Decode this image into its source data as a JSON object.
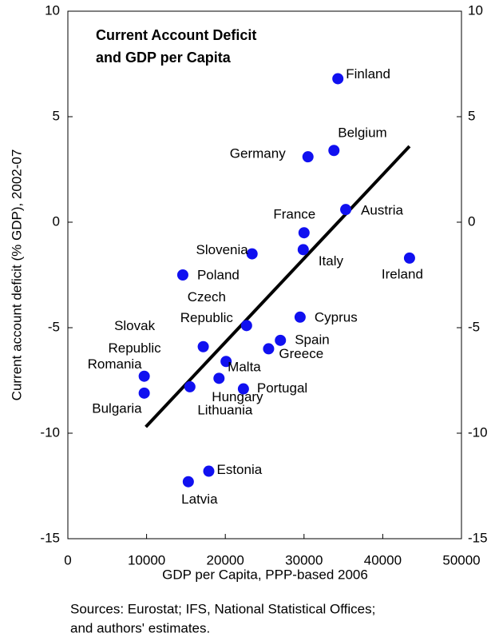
{
  "chart_data": {
    "type": "scatter",
    "title": [
      "Current Account Deficit",
      "and GDP per Capita"
    ],
    "x_label": "GDP per Capita, PPP-based 2006",
    "y_label": "Current account deficit (% GDP), 2002-07",
    "source": [
      "Sources: Eurostat; IFS, National Statistical Offices;",
      "and authors' estimates."
    ],
    "xlim": [
      0,
      50000
    ],
    "xticks": [
      0,
      10000,
      20000,
      30000,
      40000,
      50000
    ],
    "ylim": [
      -15,
      10
    ],
    "yticks": [
      -15,
      -10,
      -5,
      0,
      5,
      10
    ],
    "y2lim": [
      -15,
      10
    ],
    "y2ticks": [
      -15,
      -10,
      -5,
      0,
      5,
      10
    ],
    "color": "#1010f0",
    "labels": [
      "Finland",
      "Belgium",
      "Germany",
      "Austria",
      "France",
      "Italy",
      "Ireland",
      "Slovenia",
      "Poland",
      [
        "Czech",
        "Republic"
      ],
      "Cyprus",
      "Spain",
      "Greece",
      [
        "Slovak",
        "Republic"
      ],
      "Malta",
      "Romania",
      "Hungary",
      "Lithuania",
      "Portugal",
      "Bulgaria",
      "Estonia",
      "Latvia"
    ],
    "x": [
      34300,
      33800,
      30500,
      35300,
      30000,
      29900,
      43400,
      23400,
      14600,
      22700,
      29500,
      27000,
      25500,
      17200,
      20100,
      9700,
      19200,
      15500,
      22300,
      9700,
      17900,
      15300
    ],
    "values": [
      6.8,
      3.4,
      3.1,
      0.6,
      -0.5,
      -1.3,
      -1.7,
      -1.5,
      -2.5,
      -4.9,
      -4.5,
      -5.6,
      -6.0,
      -5.9,
      -6.6,
      -7.3,
      -7.4,
      -7.8,
      -7.9,
      -8.1,
      -11.8,
      -12.3
    ],
    "trendline": {
      "x": [
        9900,
        43400
      ],
      "values": [
        -9.7,
        3.6
      ],
      "color": "#000000"
    }
  }
}
